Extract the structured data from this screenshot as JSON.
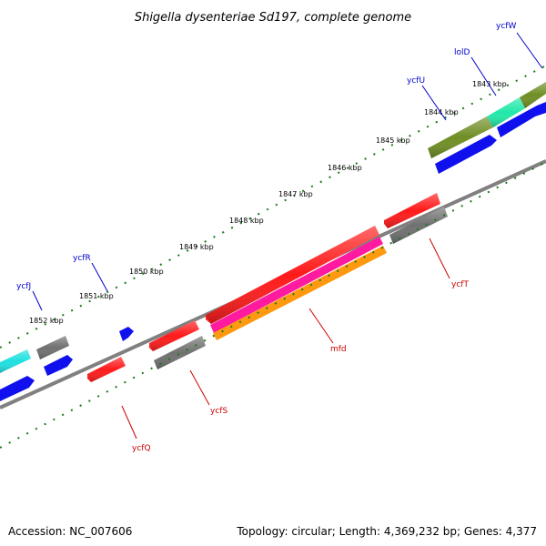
{
  "title": "Shigella dysenteriae Sd197, complete genome",
  "footer": {
    "accession": "Accession: NC_007606",
    "topology": "Topology: circular; Length: 4,369,232 bp; Genes: 4,377"
  },
  "colors": {
    "backbone": "#808080",
    "tick": "#1a7a1a",
    "forward_label": "#0000cc",
    "reverse_label": "#cc0000",
    "red": "#ff1a1a",
    "grey": "#707070",
    "blue": "#1010ee",
    "cyan": "#20e0e0",
    "aqua": "#20e8a8",
    "olive": "#6f8e24",
    "magenta": "#ff1aa0",
    "orange": "#ff9a10"
  },
  "ticks": [
    "1843 kbp",
    "1844 kbp",
    "1845 kbp",
    "1846 kbp",
    "1847 kbp",
    "1848 kbp",
    "1849 kbp",
    "1850 kbp",
    "1851 kbp",
    "1852 kbp"
  ],
  "genes_forward": [
    {
      "name": "ycfW",
      "color": "olive"
    },
    {
      "name": "lolD",
      "color": "aqua"
    },
    {
      "name": "ycfU",
      "color": "olive"
    },
    {
      "name": "ycfR",
      "color": "blue"
    },
    {
      "name": "ycfJ",
      "color": "cyan"
    }
  ],
  "genes_reverse": [
    {
      "name": "ycfT",
      "color": "red"
    },
    {
      "name": "mfd",
      "color": "red"
    },
    {
      "name": "ycfS",
      "color": "red"
    },
    {
      "name": "ycfQ",
      "color": "red"
    }
  ]
}
